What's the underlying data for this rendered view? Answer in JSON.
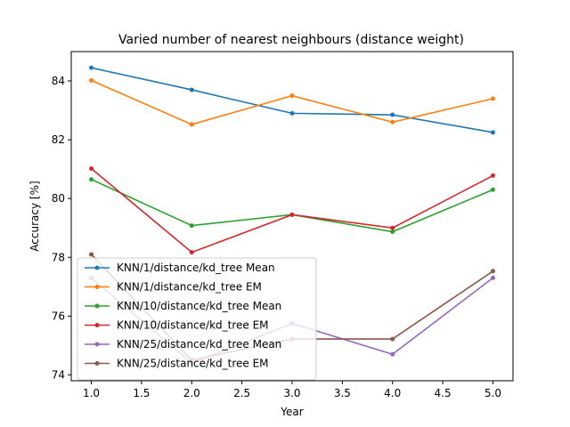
{
  "chart_data": {
    "type": "line",
    "title": "Varied number of nearest neighbours (distance weight)",
    "xlabel": "Year",
    "ylabel": "Accuracy [%]",
    "xlim": [
      0.8,
      5.2
    ],
    "ylim": [
      73.8,
      85.0
    ],
    "xticks": [
      1.0,
      1.5,
      2.0,
      2.5,
      3.0,
      3.5,
      4.0,
      4.5,
      5.0
    ],
    "xtick_labels": [
      "1.0",
      "1.5",
      "2.0",
      "2.5",
      "3.0",
      "3.5",
      "4.0",
      "4.5",
      "5.0"
    ],
    "yticks": [
      74,
      76,
      78,
      80,
      82,
      84
    ],
    "ytick_labels": [
      "74",
      "76",
      "78",
      "80",
      "82",
      "84"
    ],
    "grid": false,
    "legend_position": "lower-left",
    "x": [
      1,
      2,
      3,
      4,
      5
    ],
    "series": [
      {
        "name": "KNN/1/distance/kd_tree Mean",
        "color": "#1f77b4",
        "values": [
          84.45,
          83.7,
          82.9,
          82.85,
          82.25
        ]
      },
      {
        "name": "KNN/1/distance/kd_tree EM",
        "color": "#ff7f0e",
        "values": [
          84.02,
          82.52,
          83.5,
          82.6,
          83.4
        ]
      },
      {
        "name": "KNN/10/distance/kd_tree Mean",
        "color": "#2ca02c",
        "values": [
          80.65,
          79.08,
          79.45,
          78.87,
          80.3
        ]
      },
      {
        "name": "KNN/10/distance/kd_tree EM",
        "color": "#d62728",
        "values": [
          81.02,
          78.17,
          79.45,
          79.0,
          80.78
        ]
      },
      {
        "name": "KNN/25/distance/kd_tree Mean",
        "color": "#9467bd",
        "values": [
          77.3,
          74.4,
          75.75,
          74.7,
          77.3
        ]
      },
      {
        "name": "KNN/25/distance/kd_tree EM",
        "color": "#8c564b",
        "values": [
          78.1,
          74.5,
          75.22,
          75.22,
          77.53
        ]
      }
    ]
  }
}
